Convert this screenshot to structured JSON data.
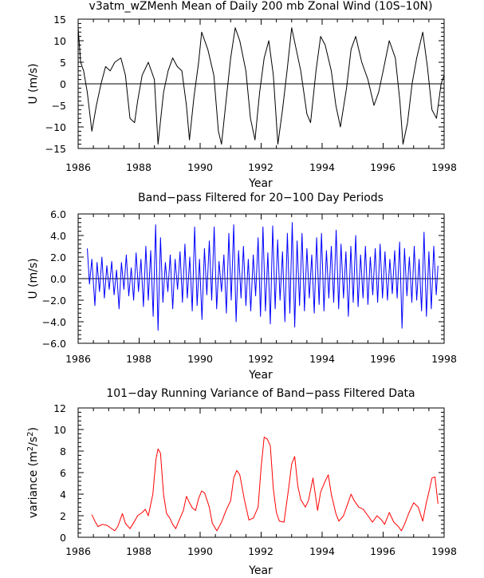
{
  "chart_data": [
    {
      "type": "line",
      "title": "v3atm_wZMenh Mean of Daily 200 mb Zonal Wind (10S–10N)",
      "xlabel": "Year",
      "ylabel": "U (m/s)",
      "xlim": [
        1986,
        1998
      ],
      "ylim": [
        -15,
        15
      ],
      "xticks": [
        1986,
        1988,
        1990,
        1992,
        1994,
        1996,
        1998
      ],
      "xtick_labels": [
        "1986",
        "1988",
        "1990",
        "1992",
        "1994",
        "1996",
        "1998"
      ],
      "yticks": [
        -15,
        -10,
        -5,
        0,
        5,
        10,
        15
      ],
      "ytick_labels": [
        "−15",
        "−10",
        "−5",
        "0",
        "5",
        "10",
        "15"
      ],
      "zero_line": true,
      "color": "#000000",
      "series": [
        {
          "name": "daily mean zonal wind",
          "x": [
            1986.0,
            1986.08,
            1986.18,
            1986.3,
            1986.45,
            1986.6,
            1986.75,
            1986.9,
            1987.05,
            1987.2,
            1987.4,
            1987.55,
            1987.7,
            1987.85,
            1987.95,
            1988.1,
            1988.3,
            1988.5,
            1988.62,
            1988.8,
            1988.95,
            1989.1,
            1989.25,
            1989.4,
            1989.55,
            1989.65,
            1989.8,
            1989.95,
            1990.05,
            1990.25,
            1990.45,
            1990.6,
            1990.7,
            1990.85,
            1991.0,
            1991.15,
            1991.3,
            1991.5,
            1991.65,
            1991.8,
            1991.95,
            1992.1,
            1992.25,
            1992.4,
            1992.55,
            1992.7,
            1992.85,
            1993.0,
            1993.15,
            1993.3,
            1993.5,
            1993.62,
            1993.8,
            1993.95,
            1994.1,
            1994.3,
            1994.45,
            1994.6,
            1994.8,
            1994.95,
            1995.1,
            1995.3,
            1995.5,
            1995.7,
            1995.85,
            1996.0,
            1996.2,
            1996.4,
            1996.55,
            1996.65,
            1996.8,
            1996.95,
            1997.1,
            1997.3,
            1997.45,
            1997.6,
            1997.75,
            1997.9,
            1998.0
          ],
          "values": [
            13,
            5,
            3,
            -2,
            -11,
            -5,
            0,
            4,
            3,
            5,
            6,
            2,
            -8,
            -9,
            -4,
            2,
            5,
            1,
            -14,
            -2,
            3,
            6,
            4,
            3,
            -5,
            -13,
            -3,
            5,
            12,
            8,
            2,
            -11,
            -14,
            -4,
            6,
            13,
            10,
            3,
            -8,
            -13,
            -2,
            6,
            10,
            2,
            -14,
            -6,
            3,
            13,
            8,
            3,
            -7,
            -9,
            3,
            11,
            9,
            3,
            -5,
            -10,
            -1,
            8,
            11,
            5,
            1,
            -5,
            -2,
            3,
            10,
            6,
            -4,
            -14,
            -9,
            0,
            6,
            12,
            4,
            -6,
            -8,
            0,
            2
          ]
        }
      ]
    },
    {
      "type": "line",
      "title": "Band−pass Filtered for 20−100 Day Periods",
      "xlabel": "Year",
      "ylabel": "U (m/s)",
      "xlim": [
        1986,
        1998
      ],
      "ylim": [
        -6,
        6
      ],
      "xticks": [
        1986,
        1988,
        1990,
        1992,
        1994,
        1996,
        1998
      ],
      "xtick_labels": [
        "1986",
        "1988",
        "1990",
        "1992",
        "1994",
        "1996",
        "1998"
      ],
      "yticks": [
        -6,
        -4,
        -2,
        0,
        2,
        4,
        6
      ],
      "ytick_labels": [
        "−6.0",
        "−4.0",
        "−2.0",
        "0.0",
        "2.0",
        "4.0",
        "6.0"
      ],
      "zero_line": true,
      "color": "#0000ff",
      "series": [
        {
          "name": "band-pass filtered U",
          "x": [
            1986.3,
            1986.37,
            1986.45,
            1986.55,
            1986.62,
            1986.7,
            1986.78,
            1986.86,
            1986.94,
            1987.02,
            1987.1,
            1987.18,
            1987.26,
            1987.34,
            1987.42,
            1987.5,
            1987.58,
            1987.66,
            1987.74,
            1987.82,
            1987.9,
            1987.98,
            1988.06,
            1988.14,
            1988.22,
            1988.3,
            1988.38,
            1988.46,
            1988.54,
            1988.62,
            1988.7,
            1988.78,
            1988.86,
            1988.94,
            1989.02,
            1989.1,
            1989.18,
            1989.26,
            1989.34,
            1989.42,
            1989.5,
            1989.58,
            1989.66,
            1989.74,
            1989.82,
            1989.9,
            1989.98,
            1990.06,
            1990.14,
            1990.22,
            1990.3,
            1990.38,
            1990.46,
            1990.54,
            1990.62,
            1990.7,
            1990.78,
            1990.86,
            1990.94,
            1991.02,
            1991.1,
            1991.18,
            1991.26,
            1991.34,
            1991.42,
            1991.5,
            1991.58,
            1991.66,
            1991.74,
            1991.82,
            1991.9,
            1991.98,
            1992.06,
            1992.14,
            1992.22,
            1992.3,
            1992.38,
            1992.46,
            1992.54,
            1992.62,
            1992.7,
            1992.78,
            1992.86,
            1992.94,
            1993.02,
            1993.1,
            1993.18,
            1993.26,
            1993.34,
            1993.42,
            1993.5,
            1993.58,
            1993.66,
            1993.74,
            1993.82,
            1993.9,
            1993.98,
            1994.06,
            1994.14,
            1994.22,
            1994.3,
            1994.38,
            1994.46,
            1994.54,
            1994.62,
            1994.7,
            1994.78,
            1994.86,
            1994.94,
            1995.02,
            1995.1,
            1995.18,
            1995.26,
            1995.34,
            1995.42,
            1995.5,
            1995.58,
            1995.66,
            1995.74,
            1995.82,
            1995.9,
            1995.98,
            1996.06,
            1996.14,
            1996.22,
            1996.3,
            1996.38,
            1996.46,
            1996.54,
            1996.62,
            1996.7,
            1996.78,
            1996.86,
            1996.94,
            1997.02,
            1997.1,
            1997.18,
            1997.26,
            1997.34,
            1997.42,
            1997.5,
            1997.58,
            1997.66,
            1997.74,
            1997.8
          ],
          "values": [
            2.8,
            -0.5,
            1.8,
            -2.5,
            1.5,
            -1.2,
            2.0,
            -1.8,
            1.2,
            -1.0,
            1.6,
            -1.5,
            0.8,
            -2.8,
            1.5,
            -1.0,
            2.2,
            -1.6,
            1.0,
            -2.0,
            2.4,
            -1.2,
            1.8,
            -2.6,
            3.0,
            -2.0,
            2.6,
            -3.5,
            5.0,
            -4.8,
            3.8,
            -2.2,
            1.5,
            -1.2,
            2.2,
            -2.8,
            1.8,
            -1.0,
            2.5,
            -2.2,
            3.2,
            -1.8,
            2.0,
            -3.0,
            4.8,
            -2.5,
            1.8,
            -3.8,
            2.8,
            -1.5,
            3.5,
            -2.0,
            4.8,
            -2.8,
            1.6,
            -1.2,
            2.2,
            -3.2,
            4.2,
            -2.0,
            5.0,
            -4.0,
            2.6,
            -1.8,
            3.0,
            -2.5,
            1.8,
            -3.0,
            2.2,
            -1.6,
            3.8,
            -3.5,
            4.8,
            -3.0,
            2.4,
            -4.2,
            4.9,
            -2.8,
            3.6,
            -2.0,
            2.5,
            -4.0,
            4.2,
            -3.2,
            5.2,
            -4.5,
            3.5,
            -2.5,
            4.2,
            -3.0,
            2.8,
            -1.8,
            2.2,
            -3.2,
            3.8,
            -2.4,
            4.2,
            -3.0,
            2.6,
            -1.8,
            3.0,
            -2.2,
            4.5,
            -2.8,
            3.2,
            -1.8,
            2.5,
            -3.5,
            3.0,
            -2.2,
            4.0,
            -2.6,
            2.2,
            -1.8,
            3.0,
            -2.4,
            2.0,
            -1.5,
            2.8,
            -2.2,
            3.2,
            -1.8,
            2.5,
            -2.0,
            1.8,
            -1.4,
            2.6,
            -1.8,
            3.4,
            -4.6,
            2.8,
            -1.6,
            2.0,
            -2.2,
            3.0,
            -2.0,
            1.8,
            -3.0,
            4.3,
            -3.5,
            2.5,
            -2.8,
            3.0,
            -1.5,
            1.2
          ]
        }
      ]
    },
    {
      "type": "line",
      "title": "101−day Running Variance of Band−pass Filtered Data",
      "xlabel": "Year",
      "ylabel": "variance (m²/s²)",
      "ylabel_parts": [
        "variance (m",
        "2",
        "/s",
        "2",
        ")"
      ],
      "xlim": [
        1986,
        1998
      ],
      "ylim": [
        0,
        12
      ],
      "xticks": [
        1986,
        1988,
        1990,
        1992,
        1994,
        1996,
        1998
      ],
      "xtick_labels": [
        "1986",
        "1988",
        "1990",
        "1992",
        "1994",
        "1996",
        "1998"
      ],
      "yticks": [
        0,
        2,
        4,
        6,
        8,
        10,
        12
      ],
      "ytick_labels": [
        "0",
        "2",
        "4",
        "6",
        "8",
        "10",
        "12"
      ],
      "zero_line": false,
      "color": "#ff0000",
      "series": [
        {
          "name": "running variance",
          "x": [
            1986.45,
            1986.55,
            1986.65,
            1986.8,
            1986.95,
            1987.05,
            1987.2,
            1987.3,
            1987.45,
            1987.55,
            1987.7,
            1987.85,
            1987.95,
            1988.1,
            1988.2,
            1988.3,
            1988.45,
            1988.55,
            1988.62,
            1988.7,
            1988.8,
            1988.9,
            1989.0,
            1989.1,
            1989.2,
            1989.3,
            1989.45,
            1989.55,
            1989.65,
            1989.75,
            1989.85,
            1989.95,
            1990.05,
            1990.15,
            1990.3,
            1990.4,
            1990.55,
            1990.7,
            1990.85,
            1991.0,
            1991.1,
            1991.2,
            1991.3,
            1991.45,
            1991.6,
            1991.75,
            1991.9,
            1992.0,
            1992.1,
            1992.2,
            1992.3,
            1992.4,
            1992.5,
            1992.6,
            1992.75,
            1992.9,
            1993.0,
            1993.1,
            1993.2,
            1993.3,
            1993.45,
            1993.55,
            1993.7,
            1993.85,
            1993.95,
            1994.1,
            1994.2,
            1994.3,
            1994.45,
            1994.55,
            1994.7,
            1994.85,
            1994.95,
            1995.05,
            1995.2,
            1995.35,
            1995.5,
            1995.65,
            1995.8,
            1995.95,
            1996.05,
            1996.2,
            1996.35,
            1996.5,
            1996.6,
            1996.7,
            1996.85,
            1997.0,
            1997.15,
            1997.3,
            1997.4,
            1997.5,
            1997.6,
            1997.7,
            1997.8
          ],
          "values": [
            2.1,
            1.5,
            1.0,
            1.2,
            1.1,
            0.9,
            0.6,
            1.0,
            2.2,
            1.3,
            0.8,
            1.5,
            2.0,
            2.3,
            2.6,
            2.0,
            4.0,
            7.2,
            8.2,
            7.8,
            4.0,
            2.2,
            1.8,
            1.2,
            0.8,
            1.5,
            2.5,
            3.8,
            3.2,
            2.7,
            2.5,
            3.6,
            4.3,
            4.1,
            2.8,
            1.3,
            0.6,
            1.4,
            2.5,
            3.4,
            5.5,
            6.2,
            5.8,
            3.5,
            1.6,
            1.8,
            2.8,
            6.5,
            9.3,
            9.1,
            8.5,
            4.5,
            2.3,
            1.5,
            1.4,
            4.5,
            6.8,
            7.5,
            4.8,
            3.5,
            2.8,
            3.4,
            5.5,
            2.5,
            4.2,
            5.2,
            5.8,
            4.0,
            2.2,
            1.5,
            2.0,
            3.2,
            4.0,
            3.4,
            2.8,
            2.6,
            2.0,
            1.4,
            2.0,
            1.6,
            1.2,
            2.3,
            1.4,
            1.0,
            0.6,
            1.2,
            2.3,
            3.2,
            2.8,
            1.5,
            3.0,
            4.2,
            5.5,
            5.6,
            3.1
          ]
        }
      ]
    }
  ]
}
